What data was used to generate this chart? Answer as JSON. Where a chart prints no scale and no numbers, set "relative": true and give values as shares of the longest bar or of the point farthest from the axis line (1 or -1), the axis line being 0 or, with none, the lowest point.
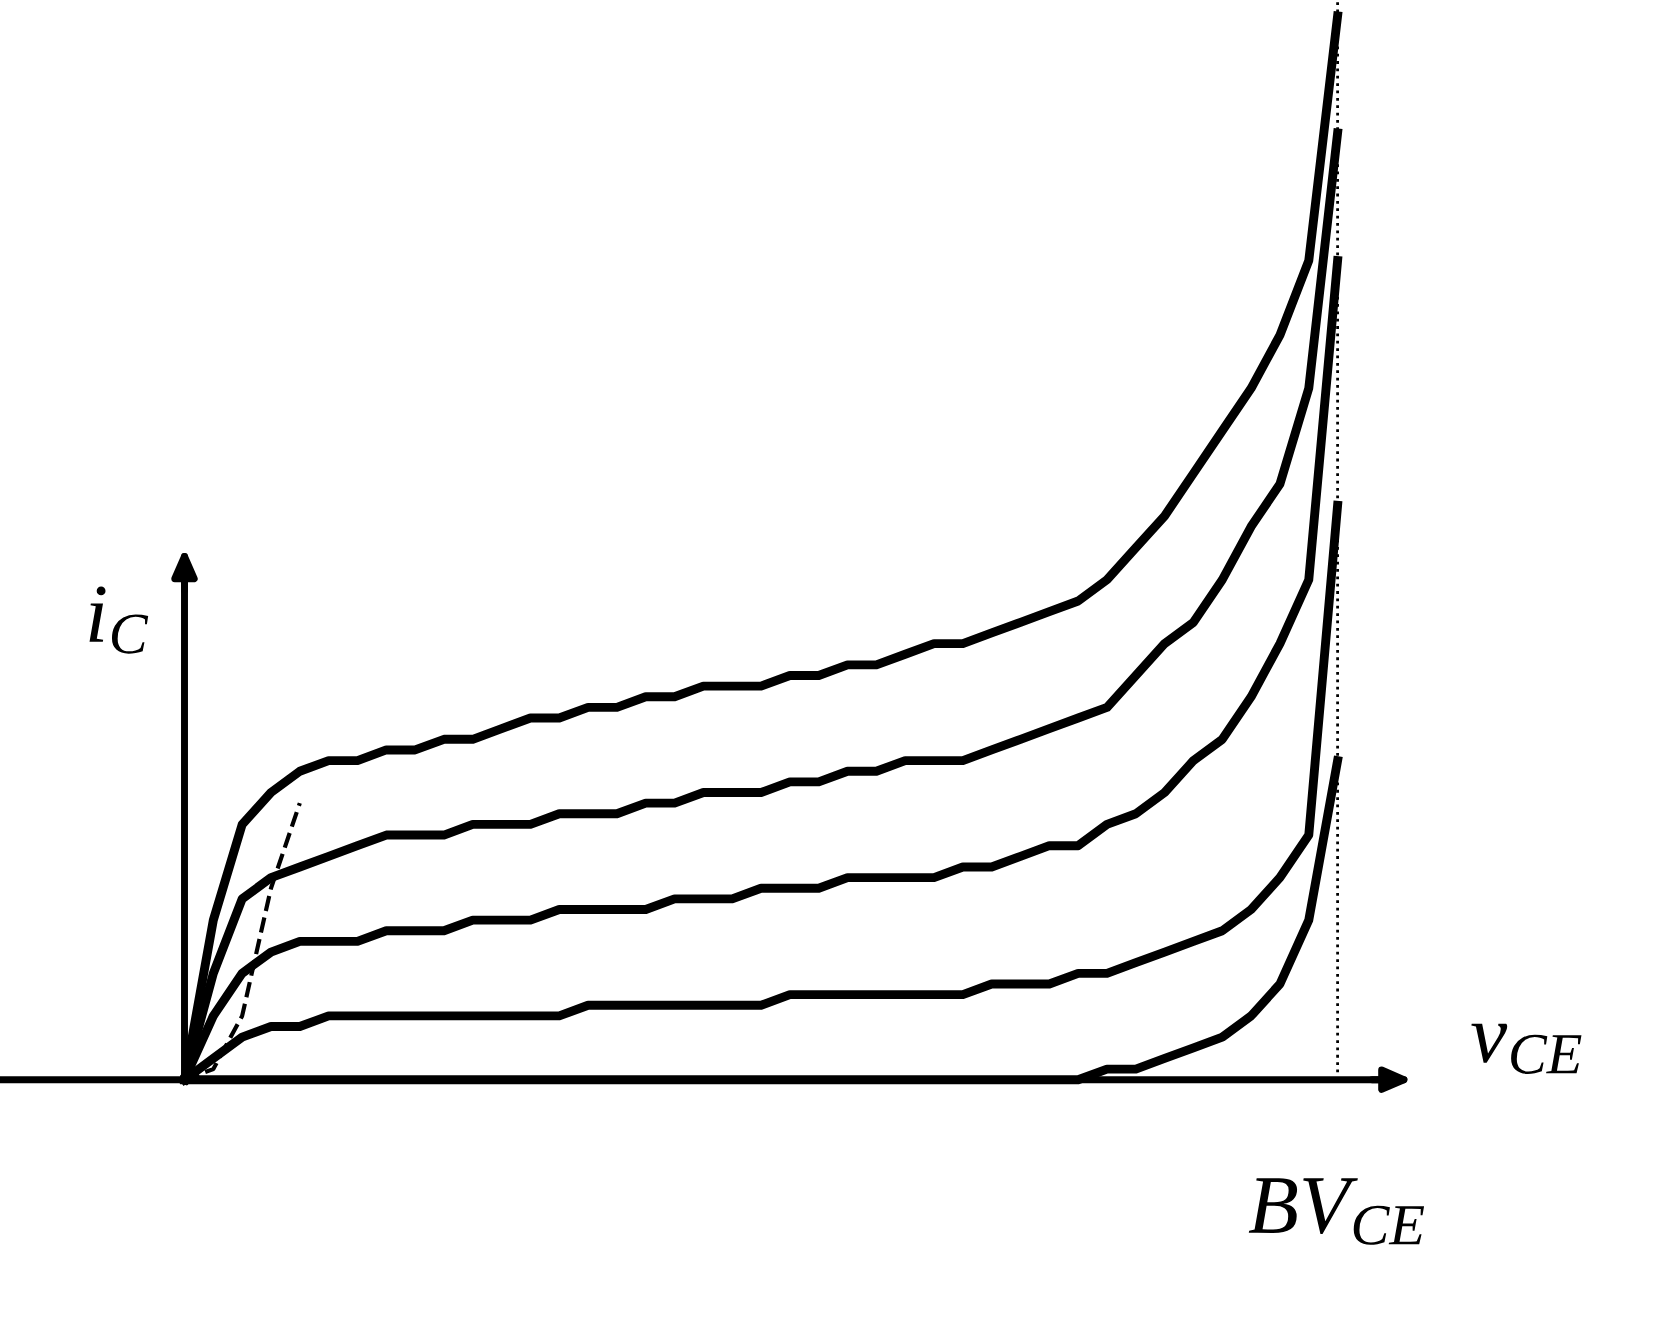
{
  "chart_data": {
    "type": "line",
    "relative": true,
    "xlabel": "v$_{CE}$",
    "ylabel": "i$_{C}$",
    "line_style": "solid",
    "marker": "none",
    "legend": false,
    "categories": [
      null,
      null,
      null,
      null,
      null,
      null,
      null,
      null,
      null,
      null,
      null,
      null,
      null,
      null,
      null,
      null,
      null,
      null,
      null,
      null,
      null,
      null,
      null,
      null,
      null,
      null,
      null,
      null,
      null,
      null,
      null,
      null,
      null,
      null,
      null,
      null,
      null,
      null,
      null,
      null,
      null
    ],
    "series": [
      {
        "color": "#000000",
        "values": [
          0,
          0.15,
          0.24,
          0.27,
          0.29,
          0.3,
          0.3,
          0.31,
          0.31,
          0.32,
          0.32,
          0.33,
          0.34,
          0.34,
          0.35,
          0.35,
          0.36,
          0.36,
          0.37,
          0.37,
          0.37,
          0.38,
          0.38,
          0.39,
          0.39,
          0.4,
          0.41,
          0.41,
          0.42,
          0.43,
          0.44,
          0.45,
          0.47,
          0.5,
          0.53,
          0.57,
          0.61,
          0.65,
          0.7,
          0.77,
          1.0
        ]
      },
      {
        "color": "#000000",
        "values": [
          0,
          0.1,
          0.17,
          0.19,
          0.2,
          0.21,
          0.22,
          0.23,
          0.23,
          0.23,
          0.24,
          0.24,
          0.24,
          0.25,
          0.25,
          0.25,
          0.26,
          0.26,
          0.27,
          0.27,
          0.27,
          0.28,
          0.28,
          0.29,
          0.29,
          0.3,
          0.3,
          0.3,
          0.31,
          0.32,
          0.33,
          0.34,
          0.35,
          0.38,
          0.41,
          0.43,
          0.47,
          0.52,
          0.56,
          0.65,
          0.89
        ]
      },
      {
        "color": "#000000",
        "values": [
          0,
          0.06,
          0.1,
          0.12,
          0.13,
          0.13,
          0.13,
          0.14,
          0.14,
          0.14,
          0.15,
          0.15,
          0.15,
          0.16,
          0.16,
          0.16,
          0.16,
          0.17,
          0.17,
          0.17,
          0.18,
          0.18,
          0.18,
          0.19,
          0.19,
          0.19,
          0.19,
          0.2,
          0.2,
          0.21,
          0.22,
          0.22,
          0.24,
          0.25,
          0.27,
          0.3,
          0.32,
          0.36,
          0.41,
          0.47,
          0.77
        ]
      },
      {
        "color": "#000000",
        "values": [
          0,
          0.02,
          0.04,
          0.05,
          0.05,
          0.06,
          0.06,
          0.06,
          0.06,
          0.06,
          0.06,
          0.06,
          0.06,
          0.06,
          0.07,
          0.07,
          0.07,
          0.07,
          0.07,
          0.07,
          0.07,
          0.08,
          0.08,
          0.08,
          0.08,
          0.08,
          0.08,
          0.08,
          0.09,
          0.09,
          0.09,
          0.1,
          0.1,
          0.11,
          0.12,
          0.13,
          0.14,
          0.16,
          0.19,
          0.23,
          0.54
        ]
      },
      {
        "color": "#000000",
        "values": [
          0,
          0,
          0,
          0,
          0,
          0,
          0,
          0,
          0,
          0,
          0,
          0,
          0,
          0,
          0,
          0,
          0,
          0,
          0,
          0,
          0,
          0,
          0,
          0,
          0,
          0,
          0,
          0,
          0,
          0,
          0,
          0,
          0.01,
          0.01,
          0.02,
          0.03,
          0.04,
          0.06,
          0.09,
          0.15,
          0.3
        ]
      },
      {
        "color": "#000000",
        "line_style": "dashed",
        "values": [
          0,
          0.01,
          0.06,
          0.18,
          0.26,
          null,
          null,
          null,
          null,
          null,
          null,
          null,
          null,
          null,
          null,
          null,
          null,
          null,
          null,
          null,
          null,
          null,
          null,
          null,
          null,
          null,
          null,
          null,
          null,
          null,
          null,
          null,
          null,
          null,
          null,
          null,
          null,
          null,
          null,
          null,
          null
        ]
      }
    ],
    "annotations": [
      "BV$_{CE}$"
    ]
  }
}
